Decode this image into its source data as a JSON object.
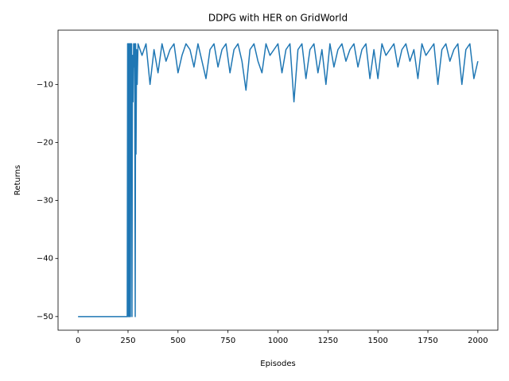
{
  "chart_data": {
    "type": "line",
    "title": "DDPG with HER on GridWorld",
    "xlabel": "Episodes",
    "ylabel": "Returns",
    "color": "#1f77b4",
    "x": [
      0,
      246,
      248,
      250,
      252,
      254,
      256,
      258,
      260,
      262,
      264,
      266,
      268,
      270,
      272,
      275,
      278,
      280,
      283,
      286,
      288,
      290,
      293,
      296,
      300,
      320,
      340,
      360,
      380,
      400,
      420,
      440,
      460,
      480,
      500,
      520,
      540,
      560,
      580,
      600,
      620,
      640,
      660,
      680,
      700,
      720,
      740,
      760,
      780,
      800,
      820,
      840,
      860,
      880,
      900,
      920,
      940,
      960,
      980,
      1000,
      1020,
      1040,
      1060,
      1080,
      1100,
      1120,
      1140,
      1160,
      1180,
      1200,
      1220,
      1240,
      1260,
      1280,
      1300,
      1320,
      1340,
      1360,
      1380,
      1400,
      1420,
      1440,
      1460,
      1480,
      1500,
      1520,
      1540,
      1560,
      1580,
      1600,
      1620,
      1640,
      1660,
      1680,
      1700,
      1720,
      1740,
      1760,
      1780,
      1800,
      1820,
      1840,
      1860,
      1880,
      1900,
      1920,
      1940,
      1960,
      1980,
      2000
    ],
    "values": [
      -50,
      -50,
      -3,
      -50,
      -3,
      -50,
      -3,
      -50,
      -3,
      -50,
      -3,
      -17,
      -3,
      -50,
      -5,
      -13,
      -3,
      -7,
      -3,
      -50,
      -3,
      -22,
      -4,
      -10,
      -3,
      -5,
      -3,
      -10,
      -4,
      -8,
      -3,
      -6,
      -4,
      -3,
      -8,
      -5,
      -3,
      -4,
      -7,
      -3,
      -6,
      -9,
      -4,
      -3,
      -7,
      -4,
      -3,
      -8,
      -4,
      -3,
      -6,
      -11,
      -4,
      -3,
      -6,
      -8,
      -3,
      -5,
      -4,
      -3,
      -8,
      -4,
      -3,
      -13,
      -4,
      -3,
      -9,
      -4,
      -3,
      -8,
      -4,
      -10,
      -3,
      -7,
      -4,
      -3,
      -6,
      -4,
      -3,
      -7,
      -4,
      -3,
      -9,
      -4,
      -9,
      -3,
      -5,
      -4,
      -3,
      -7,
      -4,
      -3,
      -6,
      -4,
      -9,
      -3,
      -5,
      -4,
      -3,
      -10,
      -4,
      -3,
      -6,
      -4,
      -3,
      -10,
      -4,
      -3,
      -9,
      -6
    ],
    "xlim": [
      -100,
      2100
    ],
    "ylim": [
      -52.35,
      -0.65
    ],
    "xticks": [
      0,
      250,
      500,
      750,
      1000,
      1250,
      1500,
      1750,
      2000
    ],
    "yticks": [
      {
        "value": -50,
        "label": "−50"
      },
      {
        "value": -40,
        "label": "−40"
      },
      {
        "value": -30,
        "label": "−30"
      },
      {
        "value": -20,
        "label": "−20"
      },
      {
        "value": -10,
        "label": "−10"
      }
    ]
  }
}
